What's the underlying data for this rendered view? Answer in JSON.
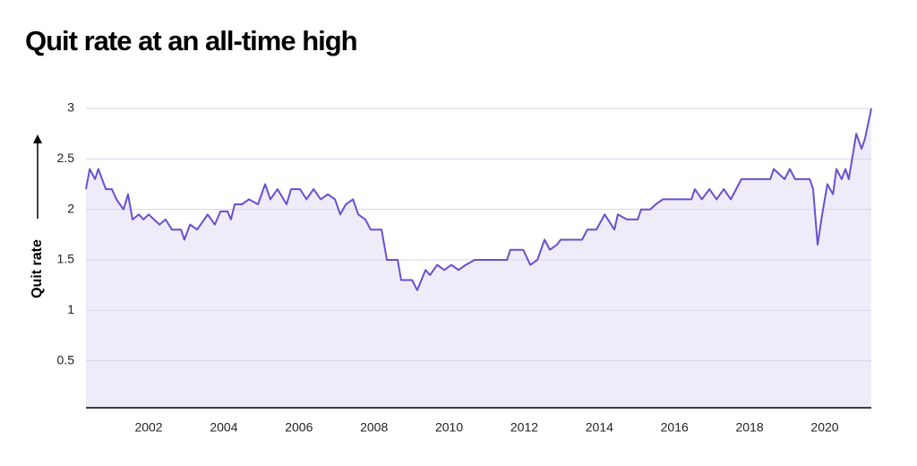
{
  "chart_data": {
    "type": "area",
    "title": "Quit rate at an all-time high",
    "y_label": "Quit rate",
    "x": [
      2000.33,
      2000.43,
      2000.57,
      2000.66,
      2000.86,
      2001.02,
      2001.14,
      2001.33,
      2001.45,
      2001.57,
      2001.74,
      2001.86,
      2002.0,
      2002.14,
      2002.29,
      2002.45,
      2002.62,
      2002.86,
      2002.95,
      2003.1,
      2003.29,
      2003.57,
      2003.76,
      2003.91,
      2004.1,
      2004.19,
      2004.29,
      2004.48,
      2004.67,
      2004.91,
      2005.1,
      2005.24,
      2005.43,
      2005.67,
      2005.79,
      2006.03,
      2006.2,
      2006.39,
      2006.58,
      2006.77,
      2006.96,
      2007.1,
      2007.25,
      2007.44,
      2007.58,
      2007.77,
      2007.91,
      2008.2,
      2008.34,
      2008.63,
      2008.72,
      2009.01,
      2009.15,
      2009.37,
      2009.49,
      2009.68,
      2009.87,
      2010.06,
      2010.25,
      2010.44,
      2010.68,
      2010.92,
      2011.54,
      2011.63,
      2011.97,
      2012.16,
      2012.35,
      2012.54,
      2012.68,
      2012.87,
      2012.97,
      2013.54,
      2013.68,
      2013.92,
      2014.14,
      2014.4,
      2014.49,
      2014.73,
      2015.02,
      2015.11,
      2015.35,
      2015.5,
      2015.69,
      2016.45,
      2016.54,
      2016.73,
      2016.93,
      2017.12,
      2017.31,
      2017.5,
      2017.64,
      2017.78,
      2018.55,
      2018.64,
      2018.93,
      2019.07,
      2019.21,
      2019.6,
      2019.69,
      2019.81,
      2019.93,
      2020.07,
      2020.22,
      2020.31,
      2020.45,
      2020.55,
      2020.64,
      2020.84,
      2020.98,
      2021.07,
      2021.24
    ],
    "series": [
      {
        "name": "Quit rate",
        "color": "#6a4fcf",
        "fill": "#efecf9",
        "values": [
          2.2,
          2.4,
          2.3,
          2.4,
          2.2,
          2.2,
          2.1,
          2.0,
          2.15,
          1.9,
          1.95,
          1.9,
          1.95,
          1.9,
          1.85,
          1.9,
          1.8,
          1.8,
          1.7,
          1.85,
          1.8,
          1.95,
          1.85,
          1.98,
          1.98,
          1.9,
          2.05,
          2.05,
          2.1,
          2.05,
          2.25,
          2.1,
          2.2,
          2.05,
          2.2,
          2.2,
          2.1,
          2.2,
          2.1,
          2.15,
          2.1,
          1.95,
          2.05,
          2.1,
          1.95,
          1.9,
          1.8,
          1.8,
          1.5,
          1.5,
          1.3,
          1.3,
          1.2,
          1.4,
          1.35,
          1.45,
          1.4,
          1.45,
          1.4,
          1.45,
          1.5,
          1.5,
          1.5,
          1.6,
          1.6,
          1.45,
          1.5,
          1.7,
          1.6,
          1.65,
          1.7,
          1.7,
          1.8,
          1.8,
          1.95,
          1.8,
          1.95,
          1.9,
          1.9,
          2.0,
          2.0,
          2.05,
          2.1,
          2.1,
          2.2,
          2.1,
          2.2,
          2.1,
          2.2,
          2.1,
          2.2,
          2.3,
          2.3,
          2.4,
          2.3,
          2.4,
          2.3,
          2.3,
          2.2,
          1.65,
          1.95,
          2.25,
          2.15,
          2.4,
          2.3,
          2.4,
          2.3,
          2.75,
          2.6,
          2.7,
          3.0
        ]
      }
    ],
    "xlim": [
      2000.33,
      2021.24
    ],
    "xticks": [
      2002,
      2004,
      2006,
      2008,
      2010,
      2012,
      2014,
      2016,
      2018,
      2020
    ],
    "ylim": [
      0,
      3
    ],
    "yticks": [
      0.5,
      1,
      1.5,
      2,
      2.5,
      3
    ],
    "grid": true
  }
}
